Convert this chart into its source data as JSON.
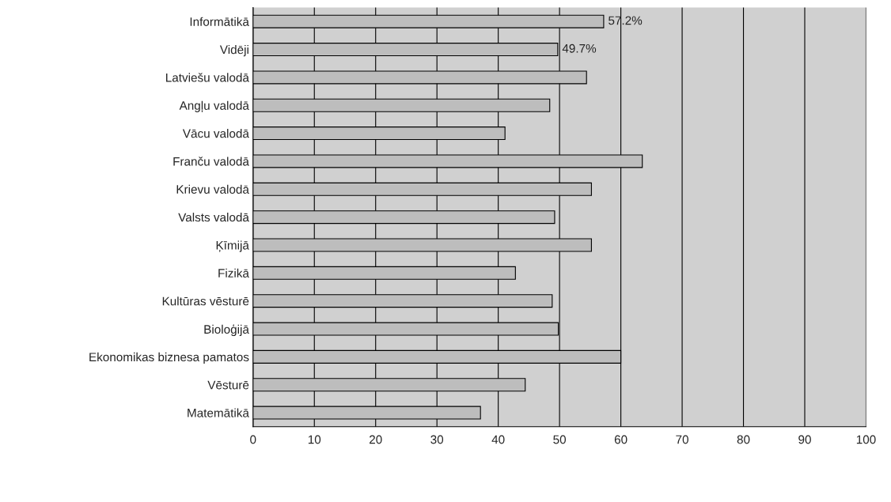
{
  "chart_data": {
    "type": "bar",
    "orientation": "horizontal",
    "categories": [
      "Informātikā",
      "Vidēji",
      "Latviešu valodā",
      "Angļu valodā",
      "Vācu valodā",
      "Franču valodā",
      "Krievu valodā",
      "Valsts valodā",
      "Ķīmijā",
      "Fizikā",
      "Kultūras vēsturē",
      "Bioloģijā",
      "Ekonomikas biznesa pamatos",
      "Vēsturē",
      "Matemātikā"
    ],
    "values": [
      57.2,
      49.7,
      54.4,
      48.4,
      41.1,
      63.5,
      55.2,
      49.2,
      55.2,
      42.8,
      48.8,
      49.8,
      60.0,
      44.4,
      37.1
    ],
    "value_labels": [
      "57.2%",
      "49.7%",
      null,
      null,
      null,
      null,
      null,
      null,
      null,
      null,
      null,
      null,
      null,
      null,
      null
    ],
    "color": "#bdbdbd",
    "xlim": [
      0,
      100
    ],
    "xticks": [
      0,
      10,
      20,
      30,
      40,
      50,
      60,
      70,
      80,
      90,
      100
    ],
    "grid": "x"
  }
}
